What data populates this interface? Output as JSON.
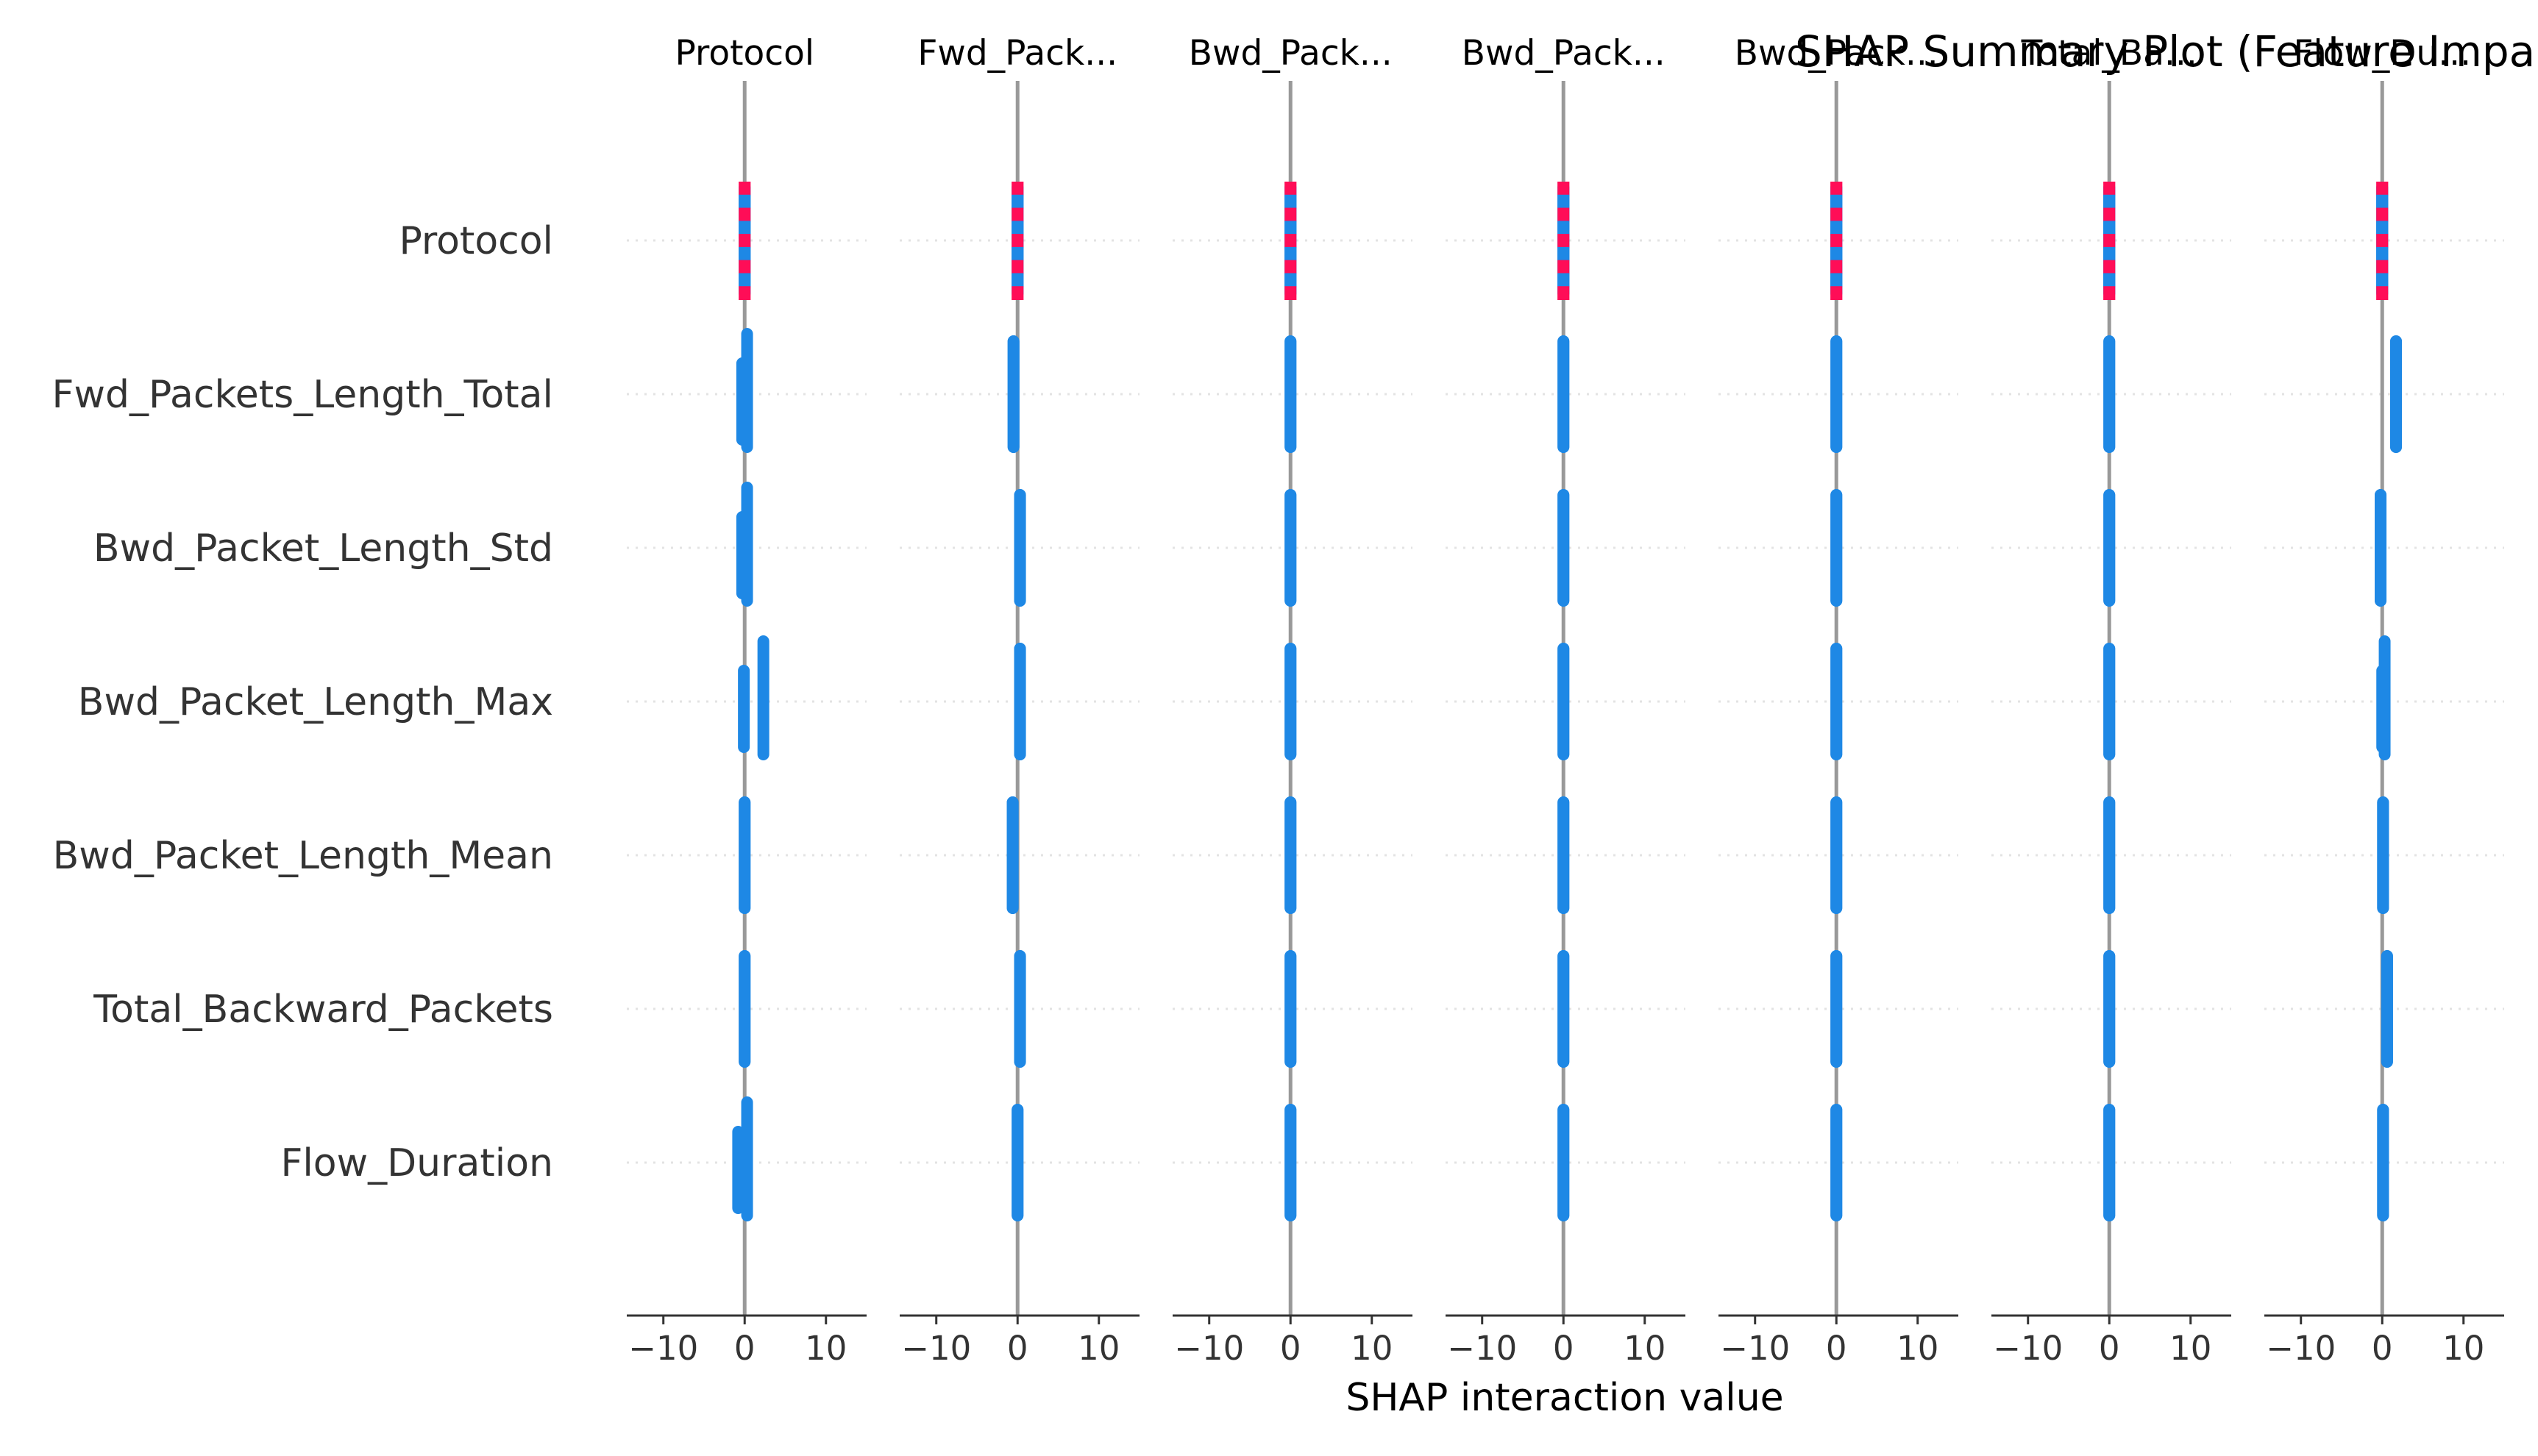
{
  "chart_data": {
    "type": "scatter",
    "title": "SHAP Summary Plot (Feature Impa",
    "xlabel": "SHAP interaction value",
    "features": [
      "Protocol",
      "Fwd_Packets_Length_Total",
      "Bwd_Packet_Length_Std",
      "Bwd_Packet_Length_Max",
      "Bwd_Packet_Length_Mean",
      "Total_Backward_Packets",
      "Flow_Duration"
    ],
    "panels": [
      "Protocol",
      "Fwd_Pack...",
      "Bwd_Pack...",
      "Bwd_Pack...",
      "Bwd_Pack...",
      "Total_Ba...",
      "Flow_Du..."
    ],
    "xlim": [
      -14.5,
      15
    ],
    "xticks": [
      -10,
      0,
      10
    ],
    "xtick_labels": [
      "−10",
      "0",
      "10"
    ],
    "grid": "dotted horizontal at each feature row",
    "colors": {
      "high_value": "#ff0d57",
      "low_value": "#1e88e5",
      "zero_line": "#999999",
      "axis": "#333333",
      "grid": "#e3e3e3"
    },
    "points": [
      [
        {
          "x": [
            0,
            0
          ],
          "color": "mixed"
        },
        {
          "x": [
            -0.3,
            0.3
          ],
          "color": "low"
        },
        {
          "x": [
            -0.3,
            0.3
          ],
          "color": "low"
        },
        {
          "x": [
            -0.1,
            2.3
          ],
          "color": "low"
        },
        {
          "x": [
            0,
            0
          ],
          "color": "low"
        },
        {
          "x": [
            0,
            0
          ],
          "color": "low"
        },
        {
          "x": [
            -0.8,
            0.3
          ],
          "color": "low"
        }
      ],
      [
        {
          "x": [
            0,
            0
          ],
          "color": "mixed"
        },
        {
          "x": [
            -0.5,
            -0.5
          ],
          "color": "low"
        },
        {
          "x": [
            0.3,
            0.3
          ],
          "color": "low"
        },
        {
          "x": [
            0.3,
            0.3
          ],
          "color": "low"
        },
        {
          "x": [
            -0.6,
            -0.6
          ],
          "color": "low"
        },
        {
          "x": [
            0.3,
            0.3
          ],
          "color": "low"
        },
        {
          "x": [
            0,
            0
          ],
          "color": "low"
        }
      ],
      [
        {
          "x": [
            0,
            0
          ],
          "color": "mixed"
        },
        {
          "x": [
            0,
            0
          ],
          "color": "low"
        },
        {
          "x": [
            0,
            0
          ],
          "color": "low"
        },
        {
          "x": [
            0,
            0
          ],
          "color": "low"
        },
        {
          "x": [
            0,
            0
          ],
          "color": "low"
        },
        {
          "x": [
            0,
            0
          ],
          "color": "low"
        },
        {
          "x": [
            0,
            0
          ],
          "color": "low"
        }
      ],
      [
        {
          "x": [
            0,
            0
          ],
          "color": "mixed"
        },
        {
          "x": [
            0,
            0
          ],
          "color": "low"
        },
        {
          "x": [
            0,
            0
          ],
          "color": "low"
        },
        {
          "x": [
            0,
            0
          ],
          "color": "low"
        },
        {
          "x": [
            0,
            0
          ],
          "color": "low"
        },
        {
          "x": [
            0,
            0
          ],
          "color": "low"
        },
        {
          "x": [
            0,
            0
          ],
          "color": "low"
        }
      ],
      [
        {
          "x": [
            0,
            0
          ],
          "color": "mixed"
        },
        {
          "x": [
            0,
            0
          ],
          "color": "low"
        },
        {
          "x": [
            0,
            0
          ],
          "color": "low"
        },
        {
          "x": [
            0,
            0
          ],
          "color": "low"
        },
        {
          "x": [
            0,
            0
          ],
          "color": "low"
        },
        {
          "x": [
            0,
            0
          ],
          "color": "low"
        },
        {
          "x": [
            0,
            0
          ],
          "color": "low"
        }
      ],
      [
        {
          "x": [
            0,
            0
          ],
          "color": "mixed"
        },
        {
          "x": [
            0,
            0
          ],
          "color": "low"
        },
        {
          "x": [
            0,
            0
          ],
          "color": "low"
        },
        {
          "x": [
            0,
            0
          ],
          "color": "low"
        },
        {
          "x": [
            0,
            0
          ],
          "color": "low"
        },
        {
          "x": [
            0,
            0
          ],
          "color": "low"
        },
        {
          "x": [
            0,
            0
          ],
          "color": "low"
        }
      ],
      [
        {
          "x": [
            0,
            0
          ],
          "color": "mixed"
        },
        {
          "x": [
            1.7,
            1.7
          ],
          "color": "low"
        },
        {
          "x": [
            -0.2,
            -0.2
          ],
          "color": "low"
        },
        {
          "x": [
            0,
            0.3
          ],
          "color": "low"
        },
        {
          "x": [
            0.1,
            0.1
          ],
          "color": "low"
        },
        {
          "x": [
            0.6,
            0.6
          ],
          "color": "low"
        },
        {
          "x": [
            0.1,
            0.1
          ],
          "color": "low"
        }
      ]
    ]
  }
}
